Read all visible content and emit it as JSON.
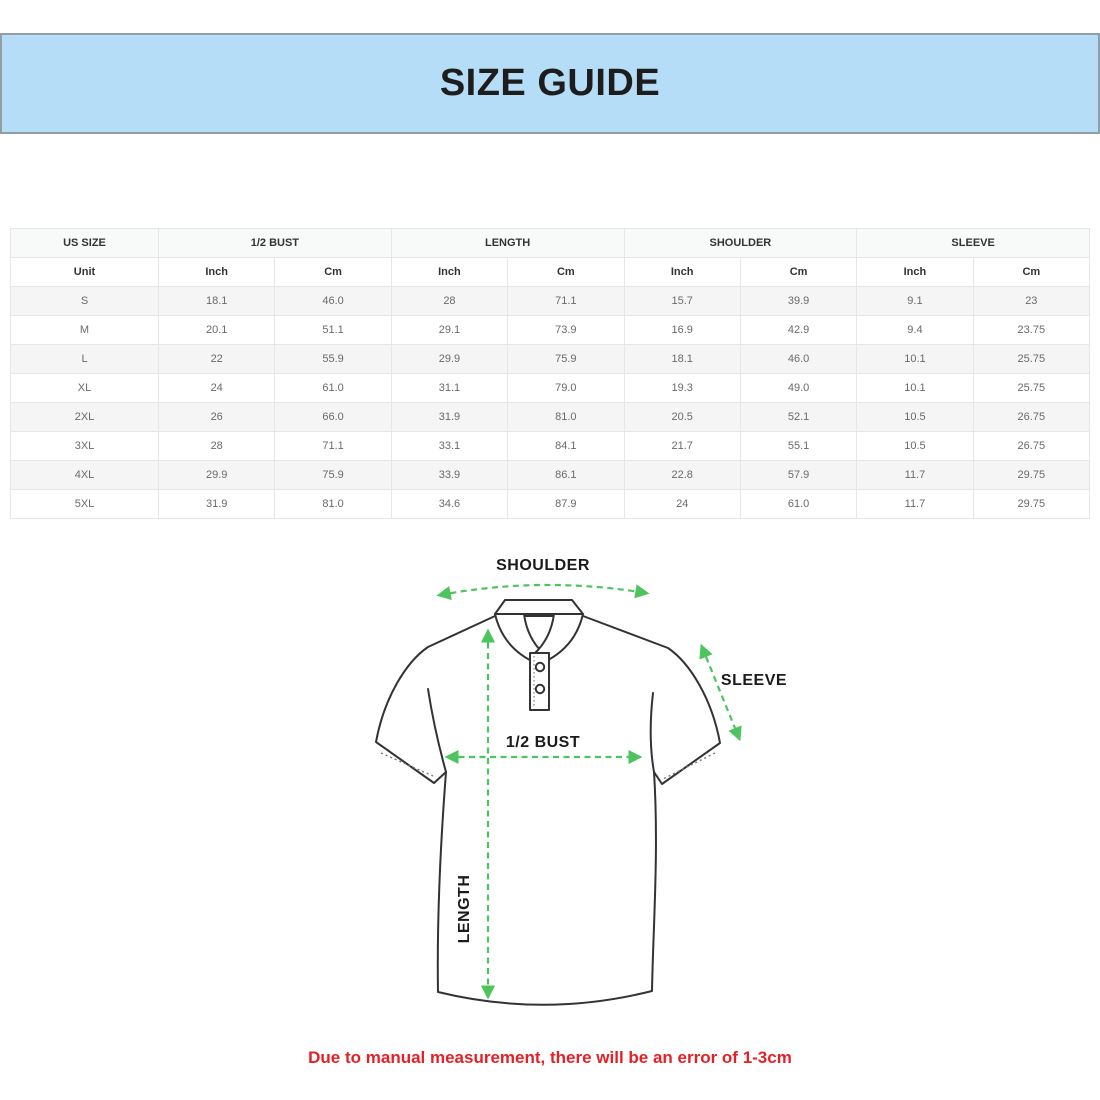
{
  "banner": {
    "title": "SIZE GUIDE"
  },
  "size_table": {
    "group_headers": [
      "US SIZE",
      "1/2 BUST",
      "LENGTH",
      "SHOULDER",
      "SLEEVE"
    ],
    "unit_row": [
      "Unit",
      "Inch",
      "Cm",
      "Inch",
      "Cm",
      "Inch",
      "Cm",
      "Inch",
      "Cm"
    ],
    "rows": [
      [
        "S",
        "18.1",
        "46.0",
        "28",
        "71.1",
        "15.7",
        "39.9",
        "9.1",
        "23"
      ],
      [
        "M",
        "20.1",
        "51.1",
        "29.1",
        "73.9",
        "16.9",
        "42.9",
        "9.4",
        "23.75"
      ],
      [
        "L",
        "22",
        "55.9",
        "29.9",
        "75.9",
        "18.1",
        "46.0",
        "10.1",
        "25.75"
      ],
      [
        "XL",
        "24",
        "61.0",
        "31.1",
        "79.0",
        "19.3",
        "49.0",
        "10.1",
        "25.75"
      ],
      [
        "2XL",
        "26",
        "66.0",
        "31.9",
        "81.0",
        "20.5",
        "52.1",
        "10.5",
        "26.75"
      ],
      [
        "3XL",
        "28",
        "71.1",
        "33.1",
        "84.1",
        "21.7",
        "55.1",
        "10.5",
        "26.75"
      ],
      [
        "4XL",
        "29.9",
        "75.9",
        "33.9",
        "86.1",
        "22.8",
        "57.9",
        "11.7",
        "29.75"
      ],
      [
        "5XL",
        "31.9",
        "81.0",
        "34.6",
        "87.9",
        "24",
        "61.0",
        "11.7",
        "29.75"
      ]
    ]
  },
  "diagram": {
    "labels": {
      "shoulder": "SHOULDER",
      "sleeve": "SLEEVE",
      "half_bust": "1/2 BUST",
      "length": "LENGTH"
    },
    "arrow_color": "#4ec45e",
    "outline_color": "#333333"
  },
  "disclaimer": {
    "text": "Due to manual measurement, there will be an error of 1-3cm",
    "color": "#e32127"
  },
  "colors": {
    "banner_bg": "#b6ddf8",
    "banner_border": "#939da4",
    "row_stripe": "#f5f5f5",
    "table_border": "#e4e7e5"
  }
}
